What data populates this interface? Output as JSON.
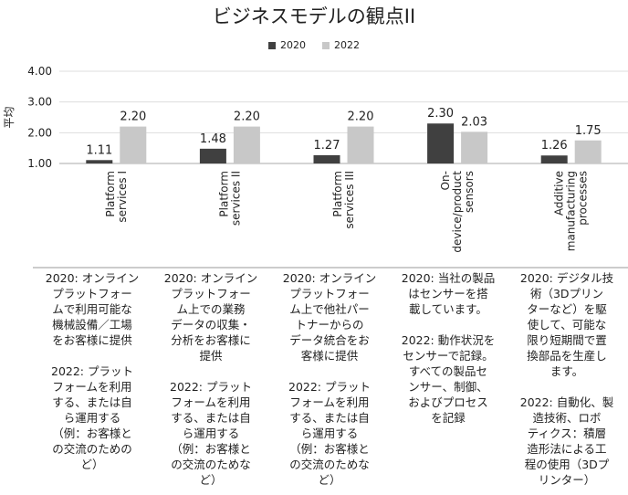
{
  "colors": {
    "s2020": "#404040",
    "s2022": "#c8c8c8",
    "grid": "#dddddd",
    "axis": "#aaaaaa",
    "text": "#222222"
  },
  "chart_data": {
    "type": "bar",
    "title": "ビジネスモデルの観点II",
    "ylabel": "平均",
    "xlabel": "",
    "ylim": [
      1.0,
      4.0
    ],
    "yticks": [
      "4.00",
      "3.00",
      "2.00",
      "1.00"
    ],
    "grid": true,
    "legend_position": "top",
    "categories": [
      "Platform services I",
      "Platform services II",
      "Platform services III",
      "On-device/product sensors",
      "Additive manufacturing processes"
    ],
    "category_lines": [
      [
        "Platform",
        "services I"
      ],
      [
        "Platform",
        "services II"
      ],
      [
        "Platform",
        "services III"
      ],
      [
        "On-",
        "device/product",
        "sensors"
      ],
      [
        "Additive",
        "manufacturing",
        "processes"
      ]
    ],
    "series": [
      {
        "name": "2020",
        "values": [
          1.11,
          1.48,
          1.27,
          2.3,
          1.26
        ],
        "labels": [
          "1.11",
          "1.48",
          "1.27",
          "2.30",
          "1.26"
        ]
      },
      {
        "name": "2022",
        "values": [
          2.2,
          2.2,
          2.2,
          2.03,
          1.75
        ],
        "labels": [
          "2.20",
          "2.20",
          "2.20",
          "2.03",
          "1.75"
        ]
      }
    ]
  },
  "notes": [
    "2020: オンライン\nプラットフォー\nムで利用可能な\n機械設備／工場\nをお客様に提供\n\n2022: プラット\nフォームを利用\nする、または自\nら運用する\n（例：お客様と\nの交流のための\nど）",
    "2020: オンライン\nプラットフォー\nム上での業務\nデータの収集・\n分析をお客様に\n提供\n\n2022: プラット\nフォームを利用\nする、または自\nら運用する\n（例：お客様と\nの交流のためな\nど）",
    "2020: オンライン\nプラットフォー\nム上で他社パー\nトナーからの\nデータ統合をお\n客様に提供\n\n2022: プラット\nフォームを利用\nする、または自\nら運用する\n（例：お客様と\nの交流のためな\nど）",
    "2020: 当社の製品\nはセンサーを搭\n載しています。\n\n2022: 動作状況を\nセンサーで記録。\nすべての製品セ\nンサー、制御、\nおよびプロセス\nを記録",
    "2020: デジタル技\n術（3Dプリン\nターなど）を駆\n使して、可能な\n限り短期間で置\n換部品を生産し\nます。\n\n2022: 自動化、製\n造技術、ロボ\nティクス：積層\n造形法による工\n程の使用（3Dプ\nリンター）"
  ]
}
